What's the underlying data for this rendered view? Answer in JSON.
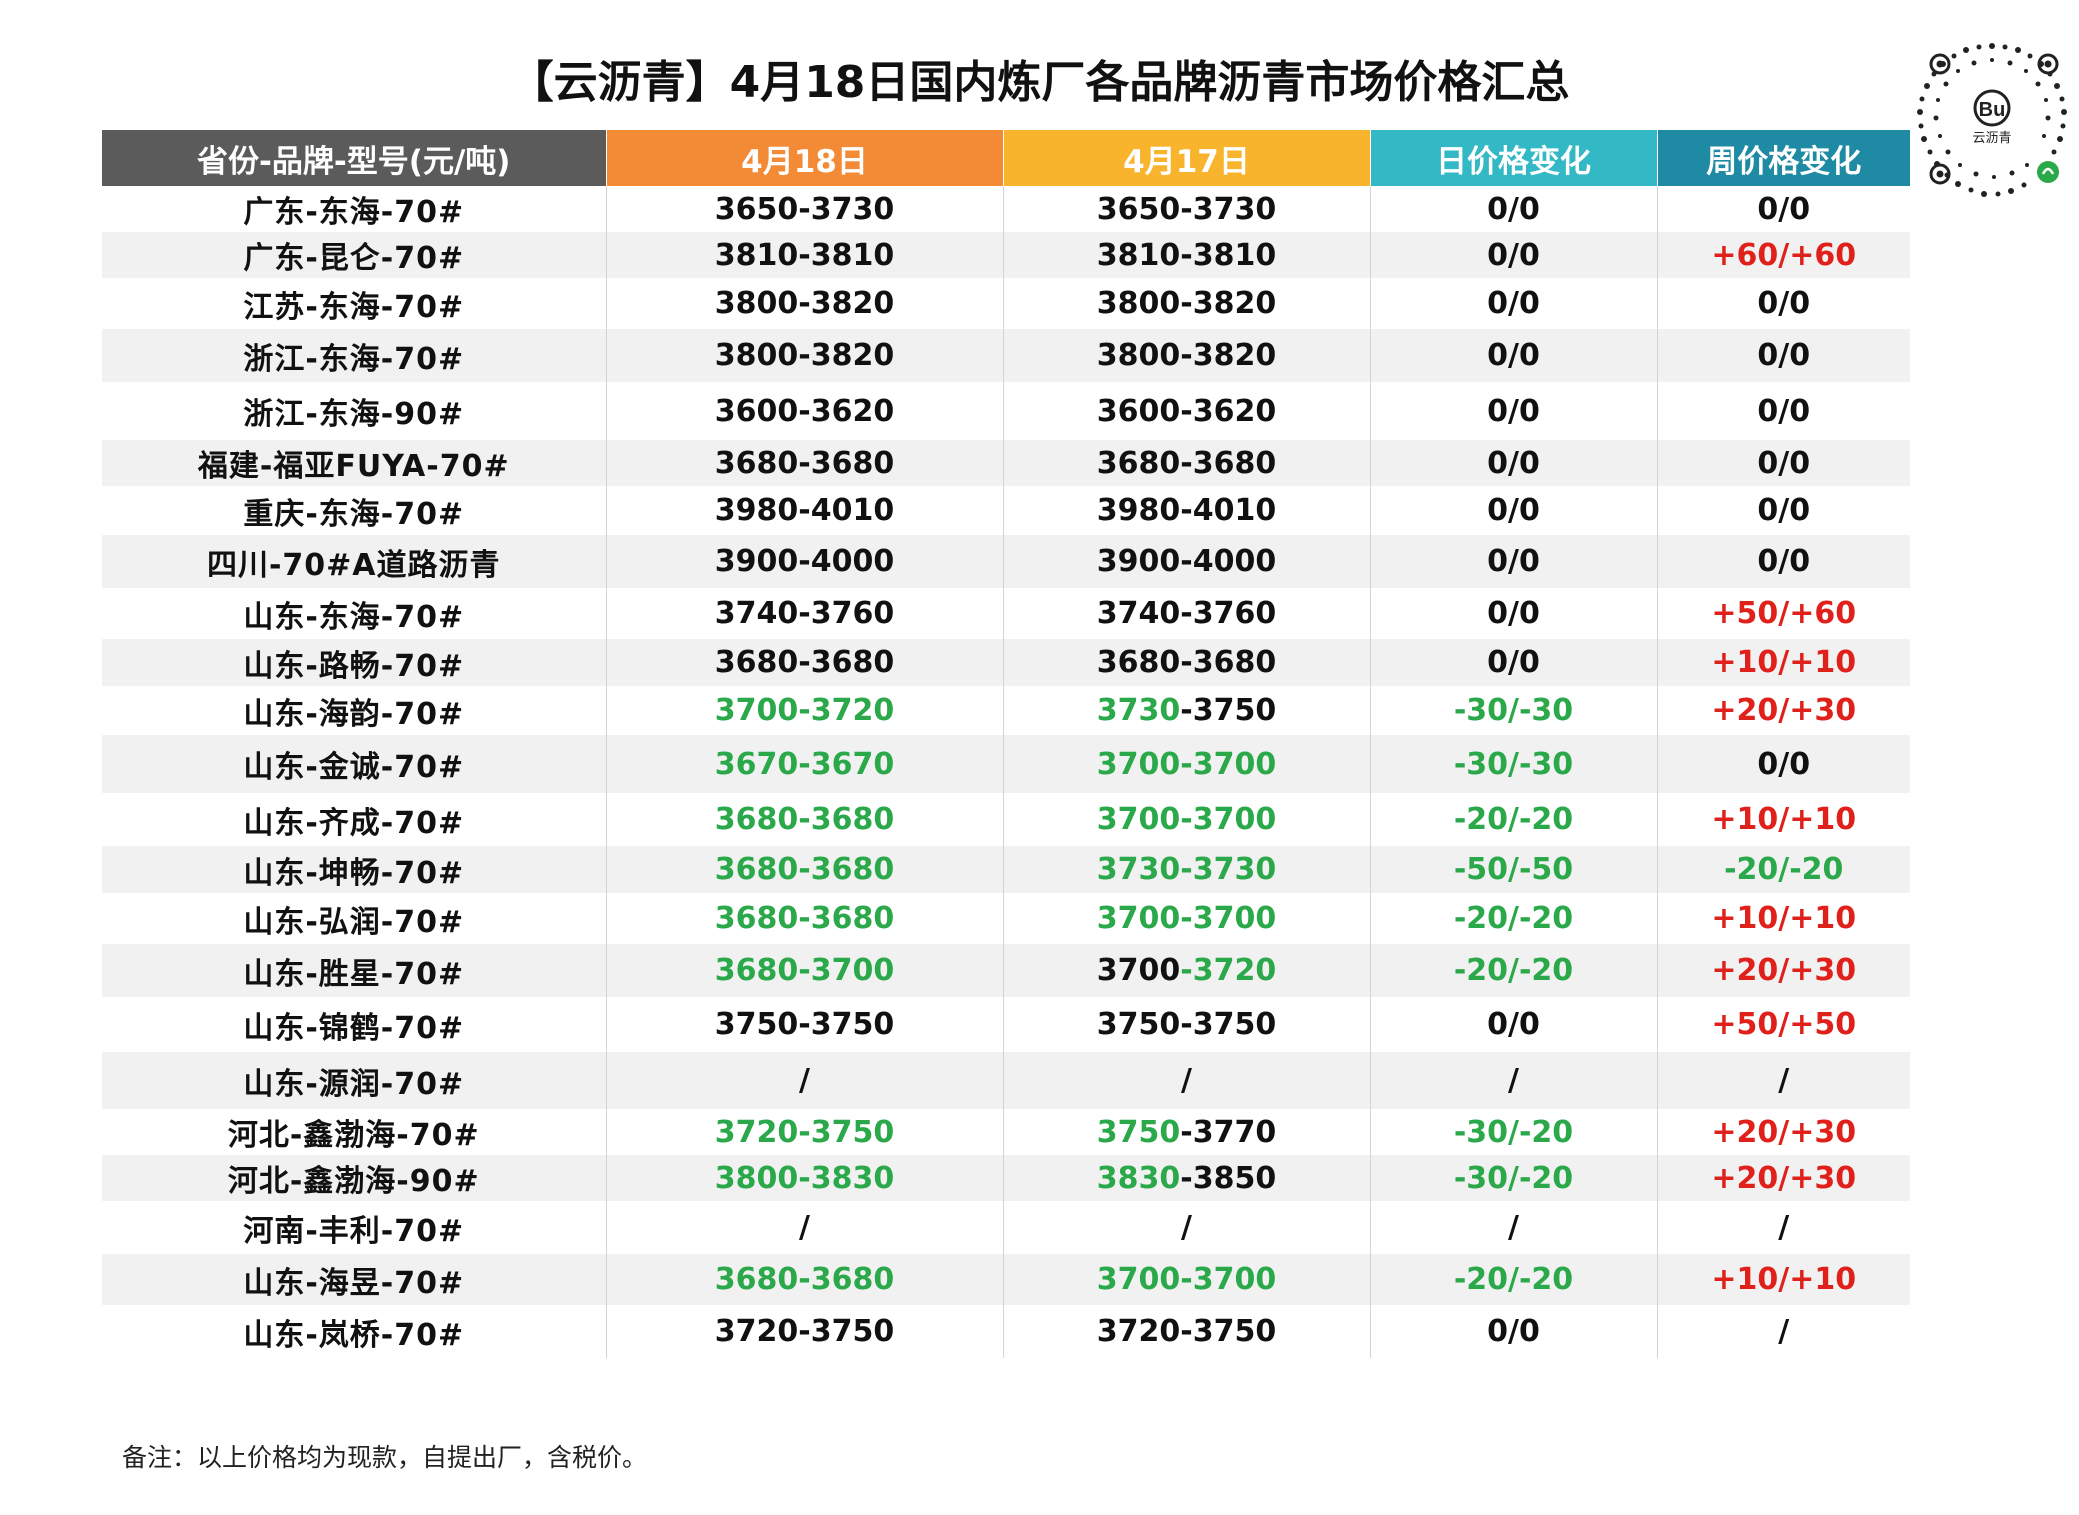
{
  "title": "【云沥青】4月18日国内炼厂各品牌沥青市场价格汇总",
  "qr_label": "云沥青",
  "colors": {
    "header_gray": "#5b5b5b",
    "header_orange": "#f38a36",
    "header_yellow": "#f7b42c",
    "header_teal": "#33b8c6",
    "header_blue": "#1e8aa3",
    "down_green": "#2aa84a",
    "up_red": "#e0201b"
  },
  "headers": [
    "省份-品牌-型号(元/吨)",
    "4月18日",
    "4月17日",
    "日价格变化",
    "周价格变化"
  ],
  "rows": [
    {
      "name": "广东-东海-70#",
      "d18": "3650-3730",
      "d17": "3650-3730",
      "day": "0/0",
      "week": "0/0"
    },
    {
      "name": "广东-昆仑-70#",
      "d18": "3810-3810",
      "d17": "3810-3810",
      "day": "0/0",
      "week": "+60/+60"
    },
    {
      "name": "江苏-东海-70#",
      "d18": "3800-3820",
      "d17": "3800-3820",
      "day": "0/0",
      "week": "0/0"
    },
    {
      "name": "浙江-东海-70#",
      "d18": "3800-3820",
      "d17": "3800-3820",
      "day": "0/0",
      "week": "0/0"
    },
    {
      "name": "浙江-东海-90#",
      "d18": "3600-3620",
      "d17": "3600-3620",
      "day": "0/0",
      "week": "0/0"
    },
    {
      "name": "福建-福亚FUYA-70#",
      "d18": "3680-3680",
      "d17": "3680-3680",
      "day": "0/0",
      "week": "0/0"
    },
    {
      "name": "重庆-东海-70#",
      "d18": "3980-4010",
      "d17": "3980-4010",
      "day": "0/0",
      "week": "0/0"
    },
    {
      "name": "四川-70#A道路沥青",
      "d18": "3900-4000",
      "d17": "3900-4000",
      "day": "0/0",
      "week": "0/0"
    },
    {
      "name": "山东-东海-70#",
      "d18": "3740-3760",
      "d17": "3740-3760",
      "day": "0/0",
      "week": "+50/+60"
    },
    {
      "name": "山东-路畅-70#",
      "d18": "3680-3680",
      "d17": "3680-3680",
      "day": "0/0",
      "week": "+10/+10"
    },
    {
      "name": "山东-海韵-70#",
      "d18": "3700-3720",
      "d17": "3730-3750",
      "day": "-30/-30",
      "week": "+20/+30"
    },
    {
      "name": "山东-金诚-70#",
      "d18": "3670-3670",
      "d17": "3700-3700",
      "day": "-30/-30",
      "week": "0/0"
    },
    {
      "name": "山东-齐成-70#",
      "d18": "3680-3680",
      "d17": "3700-3700",
      "day": "-20/-20",
      "week": "+10/+10"
    },
    {
      "name": "山东-坤畅-70#",
      "d18": "3680-3680",
      "d17": "3730-3730",
      "day": "-50/-50",
      "week": "-20/-20"
    },
    {
      "name": "山东-弘润-70#",
      "d18": "3680-3680",
      "d17": "3700-3700",
      "day": "-20/-20",
      "week": "+10/+10"
    },
    {
      "name": "山东-胜星-70#",
      "d18": "3680-3700",
      "d17": "3700-3720",
      "day": "-20/-20",
      "week": "+20/+30"
    },
    {
      "name": "山东-锦鹤-70#",
      "d18": "3750-3750",
      "d17": "3750-3750",
      "day": "0/0",
      "week": "+50/+50"
    },
    {
      "name": "山东-源润-70#",
      "d18": "/",
      "d17": "/",
      "day": "/",
      "week": "/"
    },
    {
      "name": "河北-鑫渤海-70#",
      "d18": "3720-3750",
      "d17": "3750-3770",
      "day": "-30/-20",
      "week": "+20/+30"
    },
    {
      "name": "河北-鑫渤海-90#",
      "d18": "3800-3830",
      "d17": "3830-3850",
      "day": "-30/-20",
      "week": "+20/+30"
    },
    {
      "name": "河南-丰利-70#",
      "d18": "/",
      "d17": "/",
      "day": "/",
      "week": "/"
    },
    {
      "name": "山东-海昱-70#",
      "d18": "3680-3680",
      "d17": "3700-3700",
      "day": "-20/-20",
      "week": "+10/+10"
    },
    {
      "name": "山东-岚桥-70#",
      "d18": "3720-3750",
      "d17": "3720-3750",
      "day": "0/0",
      "week": "/"
    }
  ],
  "note": "备注：以上价格均为现款，自提出厂，含税价。"
}
